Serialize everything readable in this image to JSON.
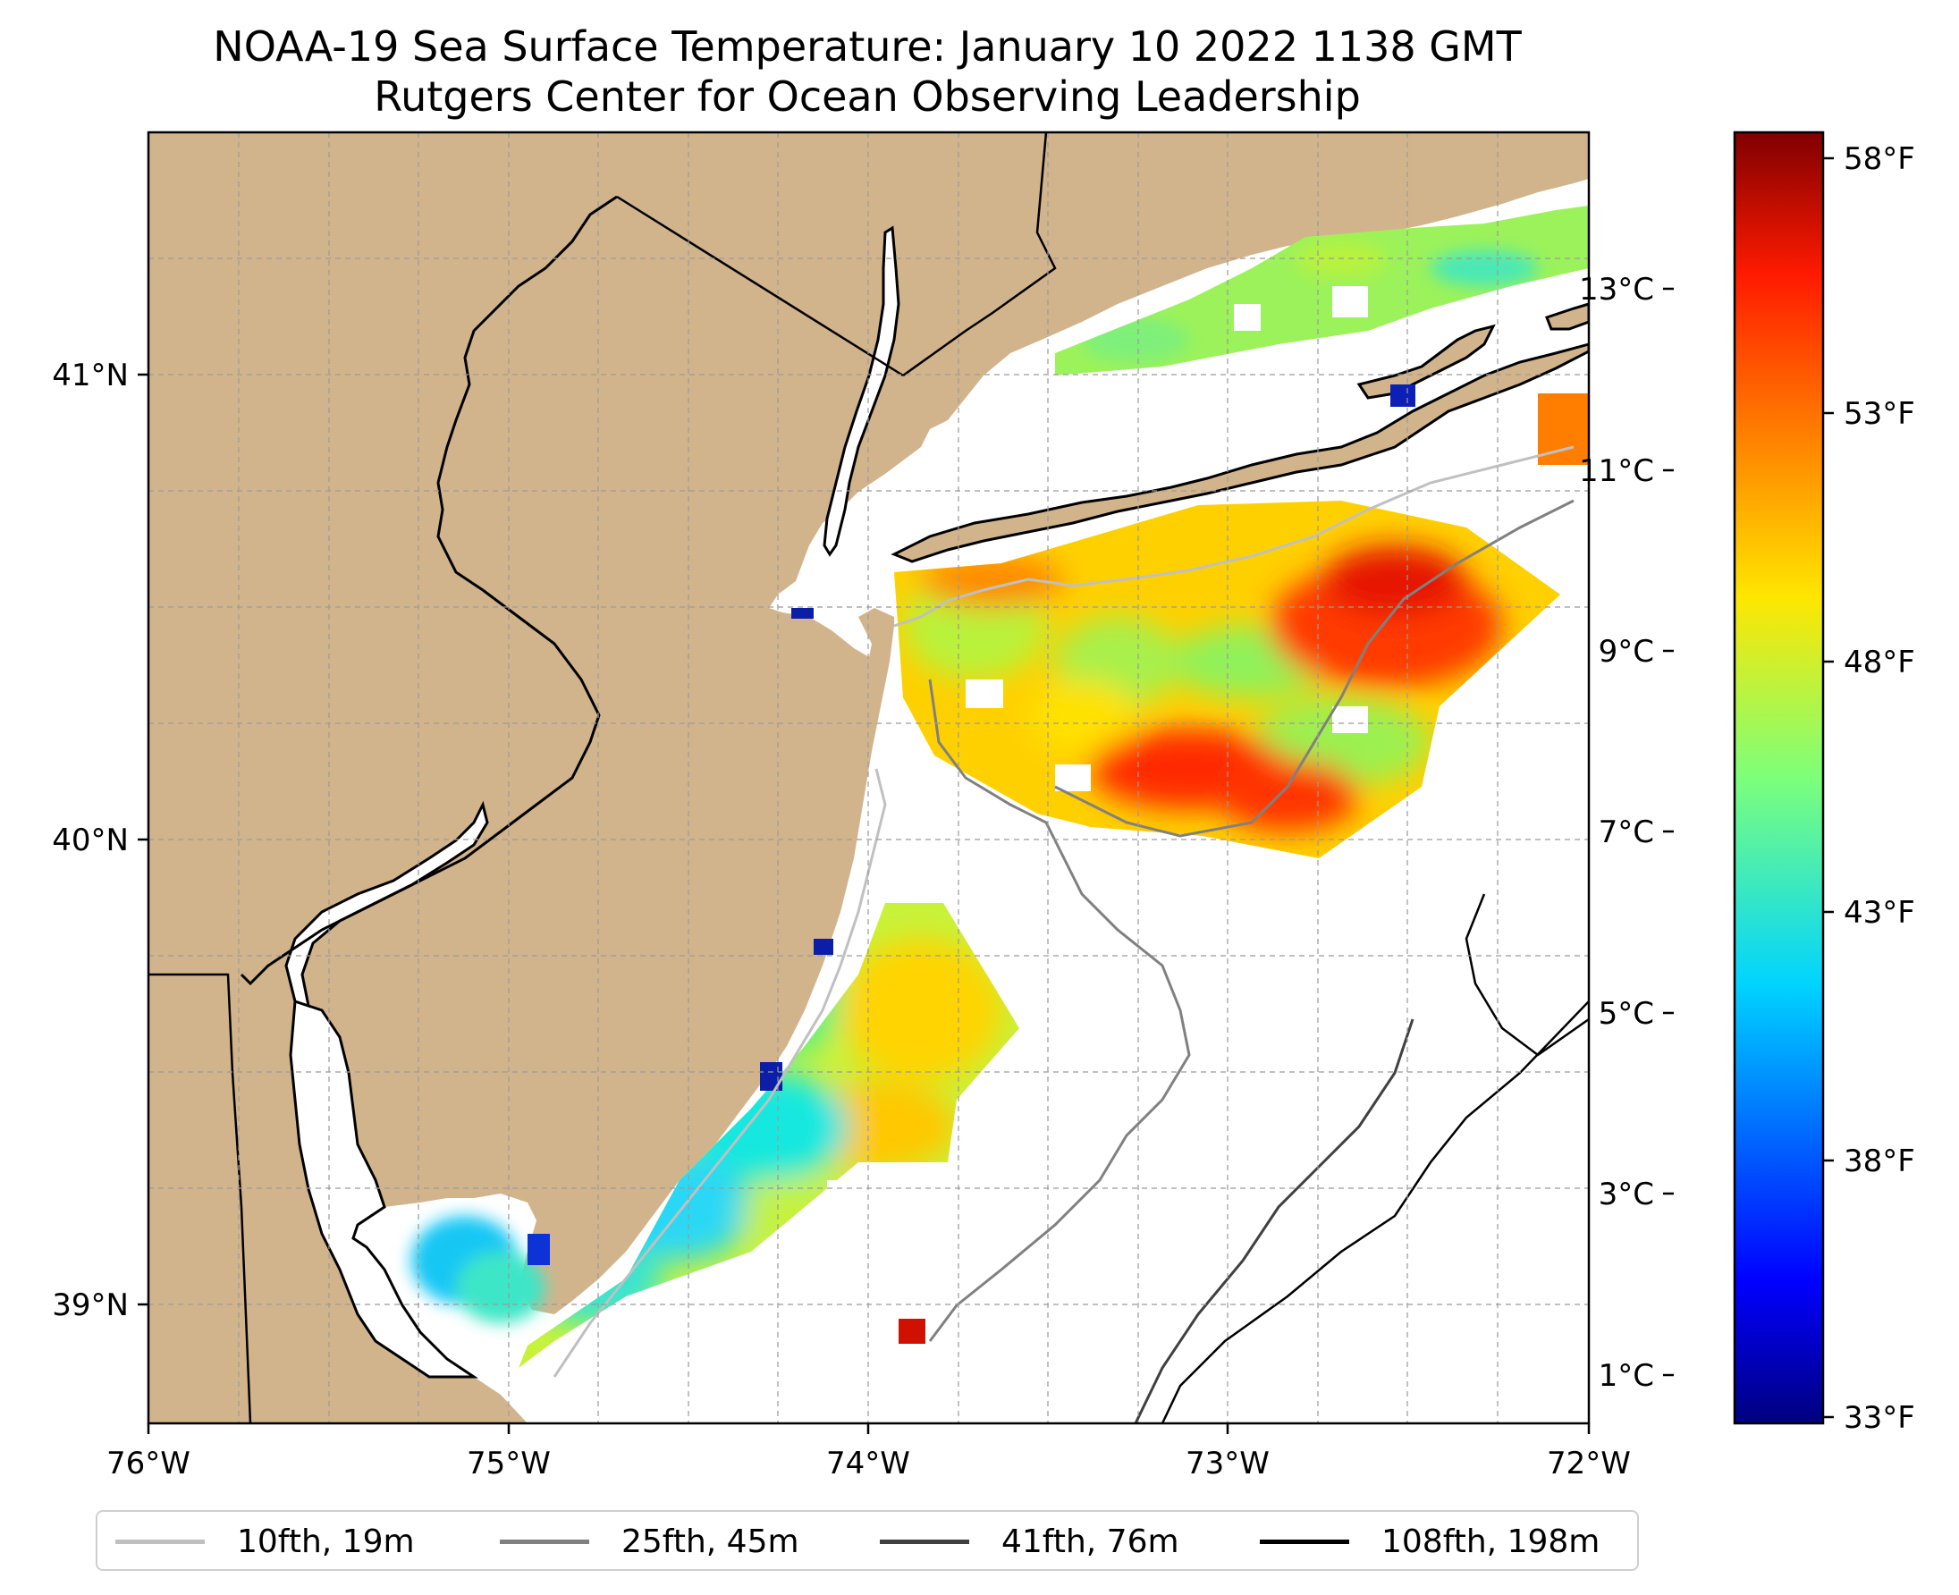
{
  "title": {
    "line1": "NOAA-19 Sea Surface Temperature: January 10 2022 1138 GMT",
    "line2": "Rutgers Center for Ocean Observing Leadership"
  },
  "map": {
    "lon_range": [
      -76,
      -72
    ],
    "lat_range": [
      38.72,
      41.5
    ],
    "land_color": "#d2b48c",
    "x_ticks": [
      "76°W",
      "75°W",
      "74°W",
      "73°W",
      "72°W"
    ],
    "y_ticks": [
      "41°N",
      "40°N",
      "39°N"
    ]
  },
  "colorbar": {
    "celsius_ticks": [
      "13°C",
      "11°C",
      "9°C",
      "7°C",
      "5°C",
      "3°C",
      "1°C"
    ],
    "fahrenheit_ticks": [
      "58°F",
      "53°F",
      "48°F",
      "43°F",
      "38°F",
      "33°F"
    ],
    "range_c": [
      0.5,
      14.7
    ]
  },
  "legend": {
    "items": [
      {
        "label": "10fth, 19m",
        "color": "#c0c0c0"
      },
      {
        "label": "25fth, 45m",
        "color": "#808080"
      },
      {
        "label": "41fth, 76m",
        "color": "#404040"
      },
      {
        "label": "108fth, 198m",
        "color": "#000000"
      }
    ]
  }
}
